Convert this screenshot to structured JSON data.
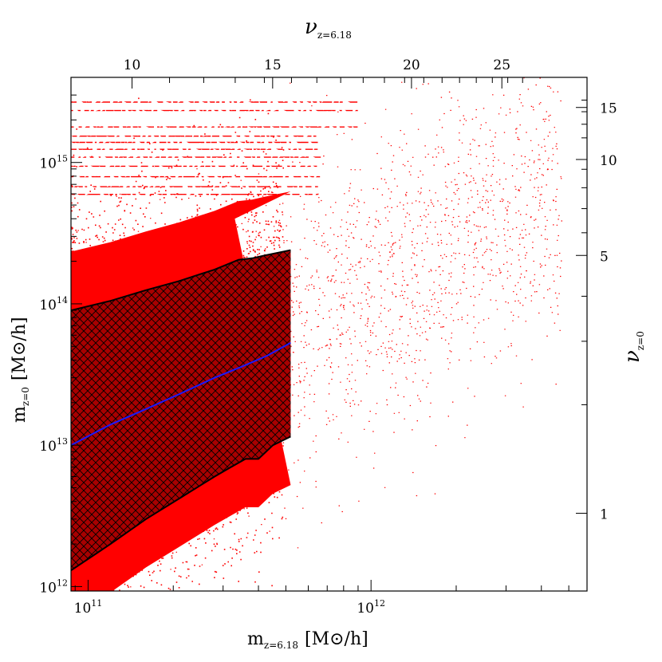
{
  "chart_data": {
    "type": "scatter",
    "colors": {
      "points": "#ff0000",
      "median_line": "#1a1aff",
      "band_outline": "#000000",
      "band_hatch": "#000000",
      "band_fill": "#a80000"
    },
    "bottom_axis": {
      "label_main": "m",
      "label_sub": "z=6.18",
      "label_unit": "[M⊙/h]",
      "scale": "log",
      "range": [
        87000000000.0,
        5800000000000.0
      ],
      "ticks": [
        {
          "value": 100000000000.0,
          "base": "10",
          "exp": "11"
        },
        {
          "value": 1000000000000.0,
          "base": "10",
          "exp": "12"
        }
      ]
    },
    "left_axis": {
      "label_main": "m",
      "label_sub": "z=0",
      "label_unit": "[M⊙/h]",
      "scale": "log",
      "range": [
        930000000000.0,
        4000000000000000.0
      ],
      "ticks": [
        {
          "value": 1000000000000.0,
          "base": "10",
          "exp": "12"
        },
        {
          "value": 10000000000000.0,
          "base": "10",
          "exp": "13"
        },
        {
          "value": 100000000000000.0,
          "base": "10",
          "exp": "14"
        },
        {
          "value": 1000000000000000.0,
          "base": "10",
          "exp": "15"
        }
      ]
    },
    "top_axis": {
      "label_main": "ν",
      "label_sub": "z=6.18",
      "ticks": [
        {
          "label": "10",
          "mass": 143000000000.0
        },
        {
          "label": "15",
          "mass": 449000000000.0
        },
        {
          "label": "20",
          "mass": 1390000000000.0
        },
        {
          "label": "25",
          "mass": 2900000000000.0
        }
      ]
    },
    "right_axis": {
      "label_main": "ν",
      "label_sub": "z=0",
      "ticks": [
        {
          "label": "1",
          "mass": 3300000000000.0
        },
        {
          "label": "5",
          "mass": 220000000000000.0
        },
        {
          "label": "10",
          "mass": 1050000000000000.0
        },
        {
          "label": "15",
          "mass": 2450000000000000.0
        }
      ]
    },
    "median_curve": {
      "x": [
        87000000000.0,
        120000000000.0,
        160000000000.0,
        210000000000.0,
        280000000000.0,
        350000000000.0,
        430000000000.0,
        520000000000.0
      ],
      "y": [
        10000000000000.0,
        14000000000000.0,
        18000000000000.0,
        23000000000000.0,
        30000000000000.0,
        36000000000000.0,
        43000000000000.0,
        53000000000000.0
      ]
    },
    "band_upper": {
      "x": [
        87000000000.0,
        120000000000.0,
        160000000000.0,
        210000000000.0,
        280000000000.0,
        340000000000.0,
        380000000000.0,
        420000000000.0,
        520000000000.0
      ],
      "y": [
        90000000000000.0,
        105000000000000.0,
        125000000000000.0,
        145000000000000.0,
        175000000000000.0,
        205000000000000.0,
        210000000000000.0,
        220000000000000.0,
        240000000000000.0
      ]
    },
    "band_lower": {
      "x": [
        87000000000.0,
        120000000000.0,
        160000000000.0,
        210000000000.0,
        280000000000.0,
        320000000000.0,
        360000000000.0,
        400000000000.0,
        450000000000.0,
        520000000000.0
      ],
      "y": [
        1300000000000.0,
        2000000000000.0,
        3000000000000.0,
        4200000000000.0,
        6000000000000.0,
        7000000000000.0,
        8000000000000.0,
        8000000000000.0,
        10000000000000.0,
        11500000000000.0
      ]
    }
  }
}
